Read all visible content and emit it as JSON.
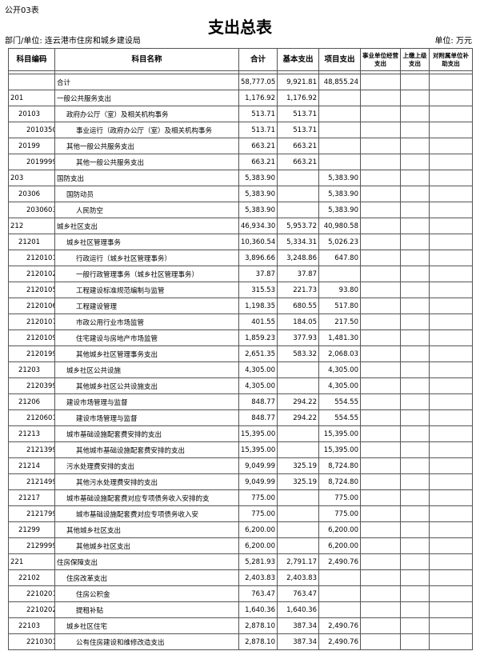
{
  "header": {
    "form_no": "公开03表",
    "title": "支出总表",
    "unit_org": "部门/单位: 连云港市住房和城乡建设局",
    "unit": "单位: 万元"
  },
  "table": {
    "columns": [
      "科目编码",
      "科目名称",
      "合计",
      "基本支出",
      "项目支出",
      "事业单位经营支出",
      "上缴上级支出",
      "对附属单位补助支出"
    ],
    "rows": [
      [
        "",
        "合计",
        "58,777.05",
        "9,921.81",
        "48,855.24"
      ],
      [
        "201",
        "一般公共服务支出",
        "1,176.92",
        "1,176.92",
        ""
      ],
      [
        "20103",
        "政府办公厅（室）及相关机构事务",
        "513.71",
        "513.71",
        ""
      ],
      [
        "2010350",
        "事业运行（政府办公厅（室）及相关机构事务",
        "513.71",
        "513.71",
        ""
      ],
      [
        "20199",
        "其他一般公共服务支出",
        "663.21",
        "663.21",
        ""
      ],
      [
        "2019999",
        "其他一般公共服务支出",
        "663.21",
        "663.21",
        ""
      ],
      [
        "203",
        "国防支出",
        "5,383.90",
        "",
        "5,383.90"
      ],
      [
        "20306",
        "国防动员",
        "5,383.90",
        "",
        "5,383.90"
      ],
      [
        "2030603",
        "人民防空",
        "5,383.90",
        "",
        "5,383.90"
      ],
      [
        "212",
        "城乡社区支出",
        "46,934.30",
        "5,953.72",
        "40,980.58"
      ],
      [
        "21201",
        "城乡社区管理事务",
        "10,360.54",
        "5,334.31",
        "5,026.23"
      ],
      [
        "2120101",
        "行政运行（城乡社区管理事务）",
        "3,896.66",
        "3,248.86",
        "647.80"
      ],
      [
        "2120102",
        "一般行政管理事务（城乡社区管理事务）",
        "37.87",
        "37.87",
        ""
      ],
      [
        "2120105",
        "工程建设标准规范编制与监管",
        "315.53",
        "221.73",
        "93.80"
      ],
      [
        "2120106",
        "工程建设管理",
        "1,198.35",
        "680.55",
        "517.80"
      ],
      [
        "2120107",
        "市政公用行业市场监管",
        "401.55",
        "184.05",
        "217.50"
      ],
      [
        "2120109",
        "住宅建设与房地产市场监管",
        "1,859.23",
        "377.93",
        "1,481.30"
      ],
      [
        "2120199",
        "其他城乡社区管理事务支出",
        "2,651.35",
        "583.32",
        "2,068.03"
      ],
      [
        "21203",
        "城乡社区公共设施",
        "4,305.00",
        "",
        "4,305.00"
      ],
      [
        "2120399",
        "其他城乡社区公共设施支出",
        "4,305.00",
        "",
        "4,305.00"
      ],
      [
        "21206",
        "建设市场管理与监督",
        "848.77",
        "294.22",
        "554.55"
      ],
      [
        "2120601",
        "建设市场管理与监督",
        "848.77",
        "294.22",
        "554.55"
      ],
      [
        "21213",
        "城市基础设施配套费安排的支出",
        "15,395.00",
        "",
        "15,395.00"
      ],
      [
        "2121399",
        "其他城市基础设施配套费安排的支出",
        "15,395.00",
        "",
        "15,395.00"
      ],
      [
        "21214",
        "污水处理费安排的支出",
        "9,049.99",
        "325.19",
        "8,724.80"
      ],
      [
        "2121499",
        "其他污水处理费安排的支出",
        "9,049.99",
        "325.19",
        "8,724.80"
      ],
      [
        "21217",
        "城市基础设施配套费对应专项债务收入安排的支",
        "775.00",
        "",
        "775.00"
      ],
      [
        "2121799",
        "城市基础设施配套费对应专项债务收入安",
        "775.00",
        "",
        "775.00"
      ],
      [
        "21299",
        "其他城乡社区支出",
        "6,200.00",
        "",
        "6,200.00"
      ],
      [
        "2129999",
        "其他城乡社区支出",
        "6,200.00",
        "",
        "6,200.00"
      ],
      [
        "221",
        "住房保障支出",
        "5,281.93",
        "2,791.17",
        "2,490.76"
      ],
      [
        "22102",
        "住房改革支出",
        "2,403.83",
        "2,403.83",
        ""
      ],
      [
        "2210201",
        "住房公积金",
        "763.47",
        "763.47",
        ""
      ],
      [
        "2210202",
        "提租补贴",
        "1,640.36",
        "1,640.36",
        ""
      ],
      [
        "22103",
        "城乡社区住宅",
        "2,878.10",
        "387.34",
        "2,490.76"
      ],
      [
        "2210301",
        "公有住房建设和维修改造支出",
        "2,878.10",
        "387.34",
        "2,490.76"
      ]
    ]
  }
}
